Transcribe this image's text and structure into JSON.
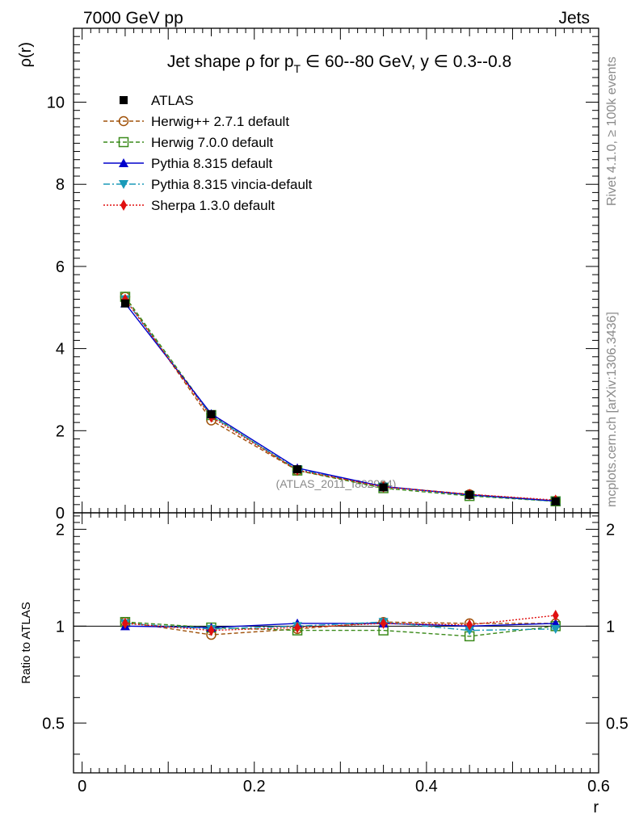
{
  "header": {
    "left": "7000 GeV pp",
    "right": "Jets"
  },
  "side": {
    "rivet": "Rivet 4.1.0, ≥ 100k events",
    "mcplots": "mcplots.cern.ch [arXiv:1306.3436]"
  },
  "watermark": "(ATLAS_2011_I882984)",
  "colors": {
    "ATLAS": "#000000",
    "Herwig++ 2.7.1 default": "#a0520a",
    "Herwig 7.0.0 default": "#3a8a1a",
    "Pythia 8.315 default": "#0000cc",
    "Pythia 8.315 vincia-default": "#1a9ab8",
    "Sherpa 1.3.0 default": "#e01010"
  },
  "chart_data": [
    {
      "type": "line",
      "title": "Jet shape ρ for p_T ∈ 60--80 GeV, y ∈ 0.3--0.8",
      "title_parts": {
        "prefix": "Jet shape ρ for p",
        "sub": "T",
        "suffix": " ∈ 60--80 GeV, y ∈ 0.3--0.8"
      },
      "xlabel": "r",
      "ylabel": "ρ(r)",
      "xlim": [
        -0.01,
        0.6
      ],
      "ylim": [
        0,
        11.8
      ],
      "yticks": [
        0,
        2,
        4,
        6,
        8,
        10
      ],
      "ytick_labels": [
        "0",
        "2",
        "4",
        "6",
        "8",
        "10"
      ],
      "x": [
        0.05,
        0.15,
        0.25,
        0.35,
        0.45,
        0.55
      ],
      "legend": [
        "ATLAS",
        "Herwig++ 2.7.1 default",
        "Herwig 7.0.0 default",
        "Pythia 8.315 default",
        "Pythia 8.315 vincia-default",
        "Sherpa 1.3.0 default"
      ],
      "series": [
        {
          "name": "ATLAS",
          "values": [
            5.1,
            2.4,
            1.06,
            0.62,
            0.44,
            0.28
          ]
        },
        {
          "name": "Herwig++ 2.7.1 default",
          "values": [
            5.26,
            2.25,
            1.03,
            0.64,
            0.45,
            0.29
          ]
        },
        {
          "name": "Herwig 7.0.0 default",
          "values": [
            5.26,
            2.38,
            1.03,
            0.6,
            0.41,
            0.28
          ]
        },
        {
          "name": "Pythia 8.315 default",
          "values": [
            5.1,
            2.41,
            1.09,
            0.64,
            0.44,
            0.29
          ]
        },
        {
          "name": "Pythia 8.315 vincia-default",
          "values": [
            5.2,
            2.36,
            1.06,
            0.64,
            0.43,
            0.28
          ]
        },
        {
          "name": "Sherpa 1.3.0 default",
          "values": [
            5.2,
            2.33,
            1.04,
            0.63,
            0.45,
            0.31
          ]
        }
      ]
    },
    {
      "type": "line",
      "title": "",
      "xlabel": "r",
      "ylabel": "Ratio to ATLAS",
      "xlim": [
        -0.01,
        0.6
      ],
      "ylim": [
        0.35,
        2.25
      ],
      "yticks": [
        0.5,
        1,
        2
      ],
      "ytick_labels": [
        "0.5",
        "1",
        "2"
      ],
      "xticks": [
        0,
        0.2,
        0.4,
        0.6
      ],
      "xtick_labels": [
        "0",
        "0.2",
        "0.4",
        "0.6"
      ],
      "x": [
        0.05,
        0.15,
        0.25,
        0.35,
        0.45,
        0.55
      ],
      "reference_line": 1,
      "series": [
        {
          "name": "Herwig++ 2.7.1 default",
          "values": [
            1.03,
            0.94,
            0.98,
            1.03,
            1.02,
            1.02
          ]
        },
        {
          "name": "Herwig 7.0.0 default",
          "values": [
            1.03,
            0.99,
            0.97,
            0.97,
            0.93,
            1.0
          ]
        },
        {
          "name": "Pythia 8.315 default",
          "values": [
            1.0,
            0.99,
            1.02,
            1.02,
            1.0,
            1.02
          ]
        },
        {
          "name": "Pythia 8.315 vincia-default",
          "values": [
            1.02,
            0.98,
            1.0,
            1.03,
            0.97,
            0.98
          ]
        },
        {
          "name": "Sherpa 1.3.0 default",
          "values": [
            1.02,
            0.97,
            0.99,
            1.02,
            1.01,
            1.08
          ]
        }
      ]
    }
  ]
}
